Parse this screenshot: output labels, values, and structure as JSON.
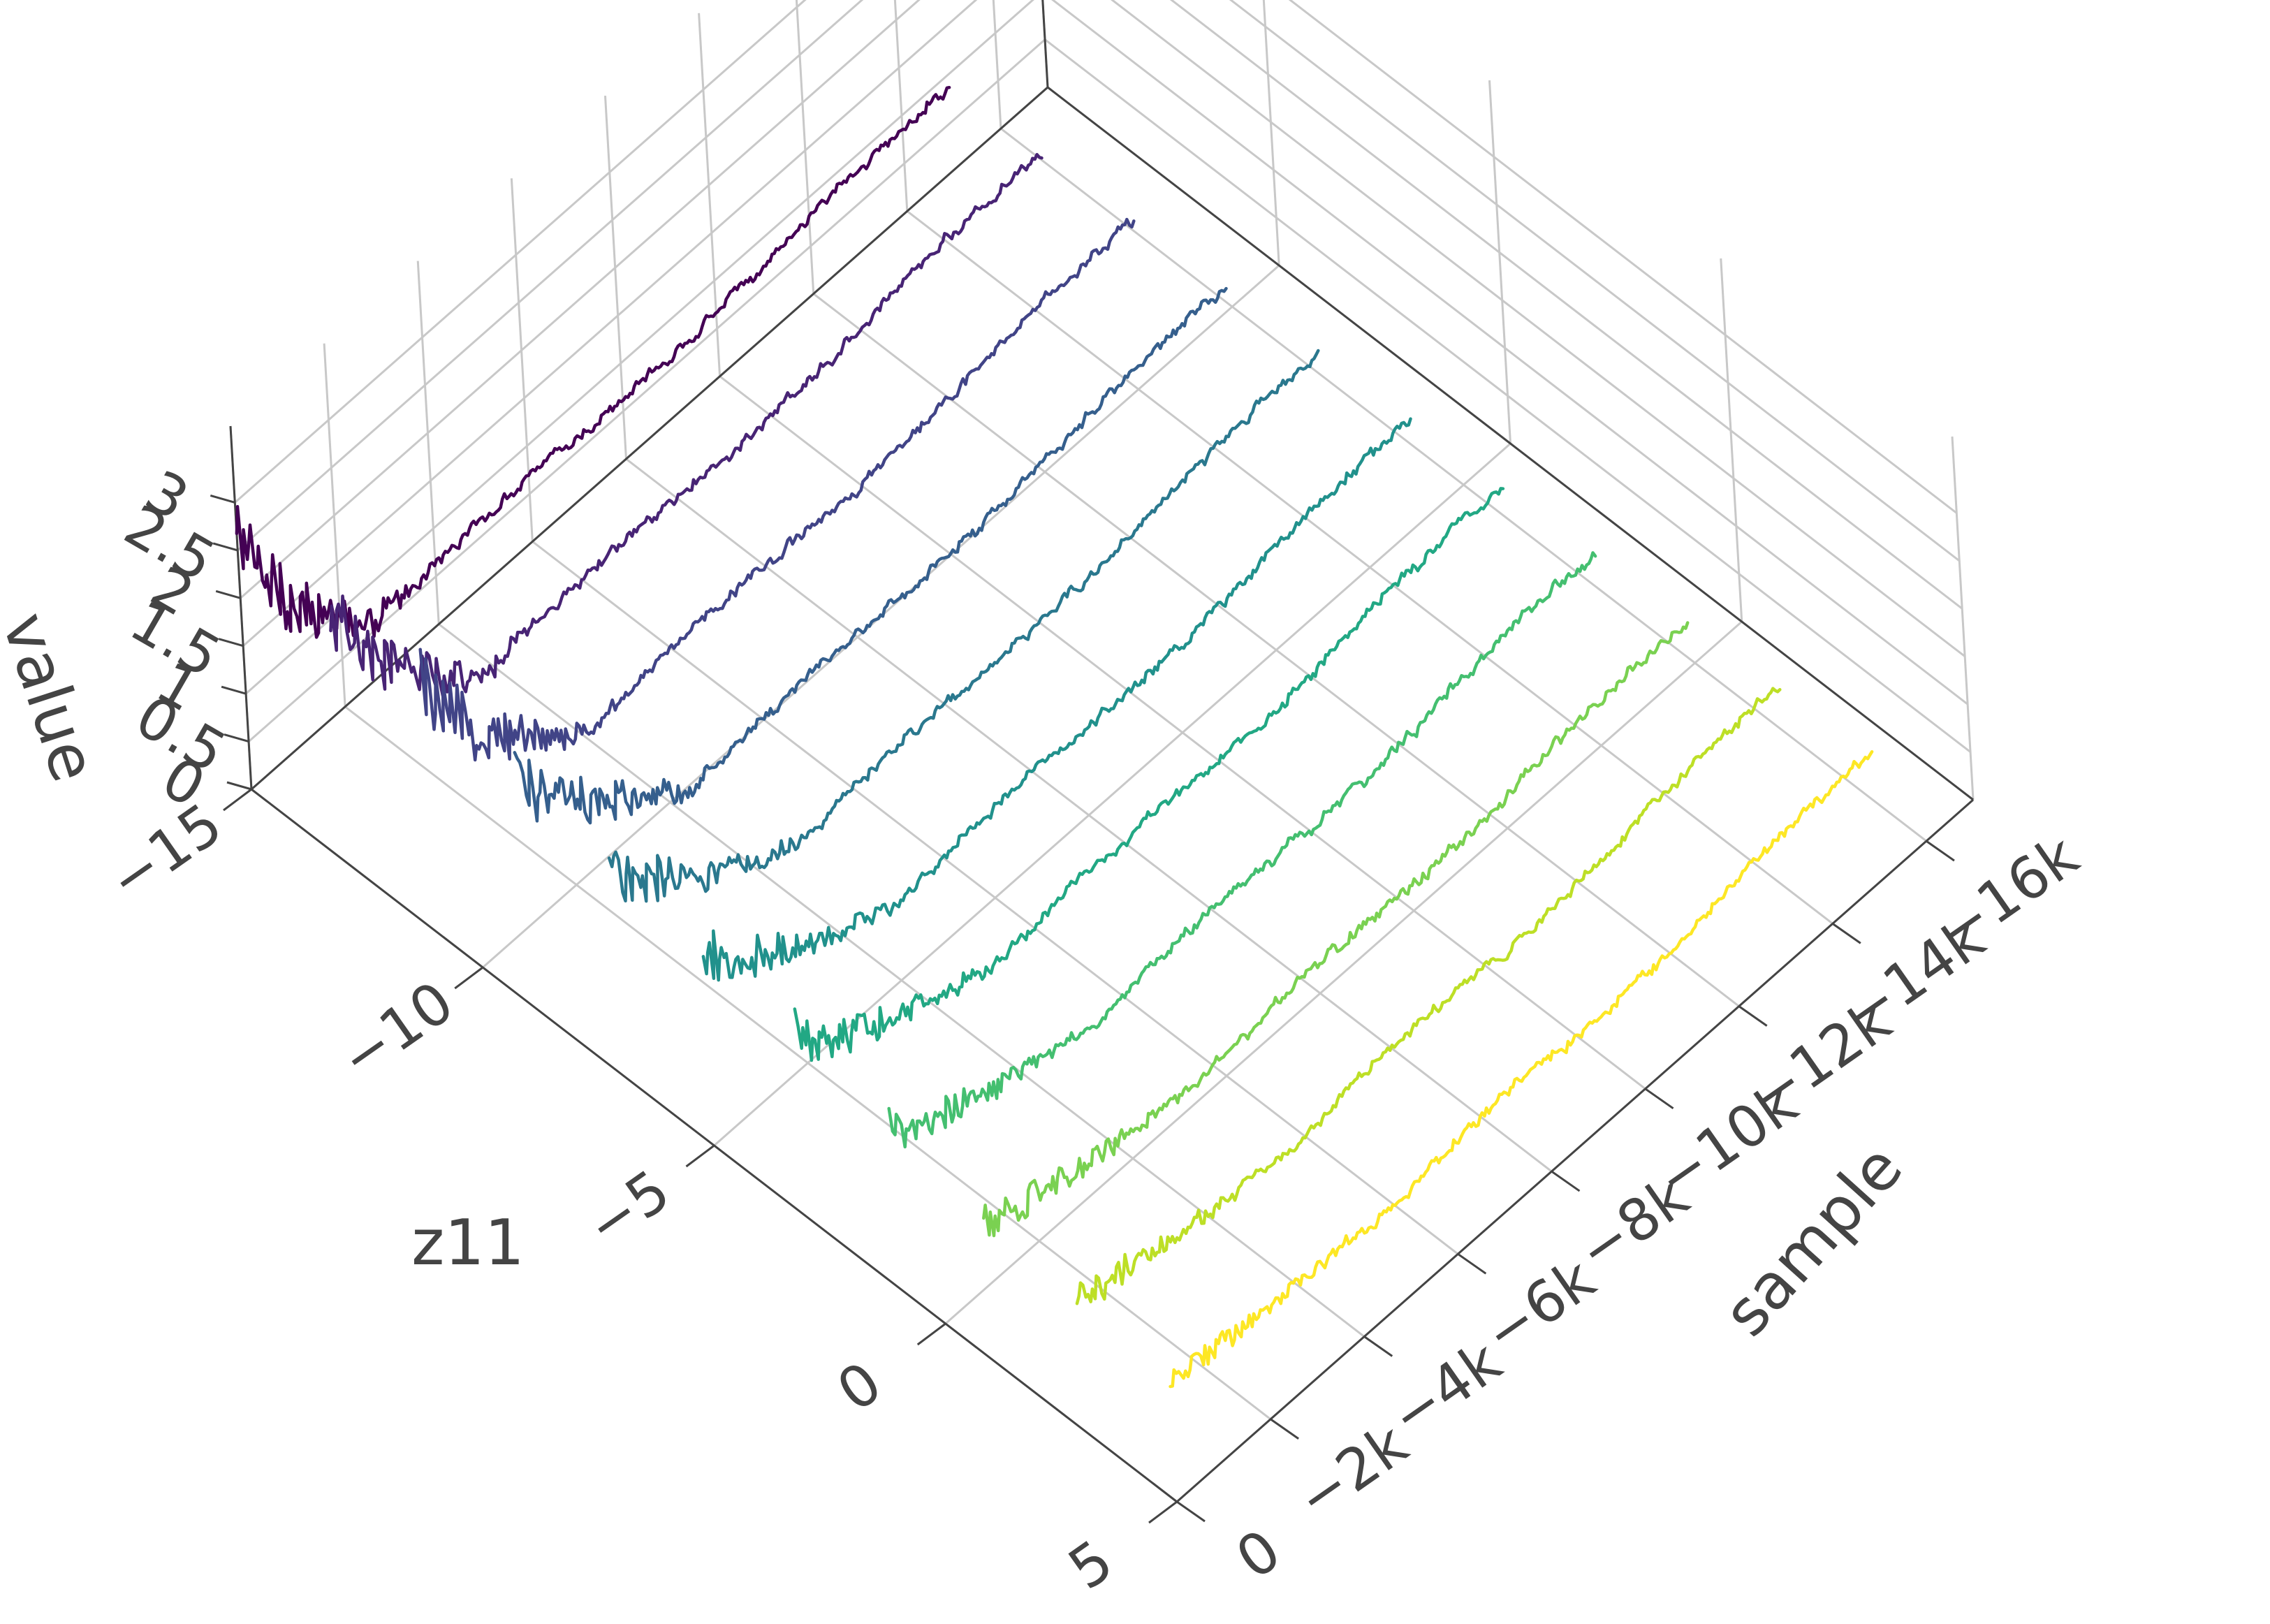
{
  "chart_data": {
    "type": "line",
    "subtype": "3d-ribbon-lines",
    "title": "",
    "axes": {
      "x": {
        "label": "sample",
        "range": [
          0,
          17000
        ],
        "ticks": [
          0,
          -2000,
          -4000,
          -6000,
          -8000,
          -10000,
          -12000,
          -14000,
          -16000
        ],
        "tick_labels": [
          "0",
          "−2k",
          "−4k",
          "−6k",
          "−8k",
          "−10k",
          "−12k",
          "−14k",
          "−16k"
        ]
      },
      "y": {
        "label": "z11",
        "range": [
          -15,
          7
        ],
        "ticks": [
          -15,
          -10,
          -5,
          0,
          5
        ],
        "tick_labels": [
          "−15",
          "−10",
          "−5",
          "0",
          "5"
        ]
      },
      "z": {
        "label": "value",
        "range": [
          0,
          3.8
        ],
        "ticks": [
          0,
          0.5,
          1,
          1.5,
          2,
          2.5,
          3
        ],
        "tick_labels": [
          "0",
          "0.5",
          "1",
          "1.5",
          "2",
          "2.5",
          "3"
        ]
      }
    },
    "grid": true,
    "legend": "none",
    "colormap": "viridis",
    "series": [
      {
        "z11": -15,
        "color": "#440154",
        "sample_end": -15000,
        "start_value": 2.9,
        "min_value": 0.55,
        "min_sample": -2600
      },
      {
        "z11": -13,
        "color": "#482475",
        "sample_end": -15000,
        "start_value": 2.8,
        "min_value": 0.6,
        "min_sample": -3000
      },
      {
        "z11": -11,
        "color": "#414487",
        "sample_end": -15000,
        "start_value": 2.7,
        "min_value": 0.65,
        "min_sample": -3300
      },
      {
        "z11": -9,
        "color": "#355f8d",
        "sample_end": -15000,
        "start_value": 2.5,
        "min_value": 0.7,
        "min_sample": -3600
      },
      {
        "z11": -7,
        "color": "#2a788e",
        "sample_end": -15000,
        "start_value": 2.3,
        "min_value": 0.75,
        "min_sample": -3800
      },
      {
        "z11": -5,
        "color": "#21918c",
        "sample_end": -15000,
        "start_value": 2.1,
        "min_value": 0.8,
        "min_sample": -4000
      },
      {
        "z11": -3,
        "color": "#22a884",
        "sample_end": -15000,
        "start_value": 1.9,
        "min_value": 0.85,
        "min_sample": -4200
      },
      {
        "z11": -1,
        "color": "#44bf70",
        "sample_end": -15000,
        "start_value": 1.7,
        "min_value": 0.9,
        "min_sample": -4400
      },
      {
        "z11": 1,
        "color": "#7ad151",
        "sample_end": -15000,
        "start_value": 1.5,
        "min_value": 0.95,
        "min_sample": -4600
      },
      {
        "z11": 3,
        "color": "#bddf26",
        "sample_end": -15000,
        "start_value": 1.4,
        "min_value": 1.0,
        "min_sample": -4700
      },
      {
        "z11": 5,
        "color": "#fde725",
        "sample_end": -15000,
        "start_value": 1.3,
        "min_value": 1.05,
        "min_sample": -4800
      }
    ]
  }
}
